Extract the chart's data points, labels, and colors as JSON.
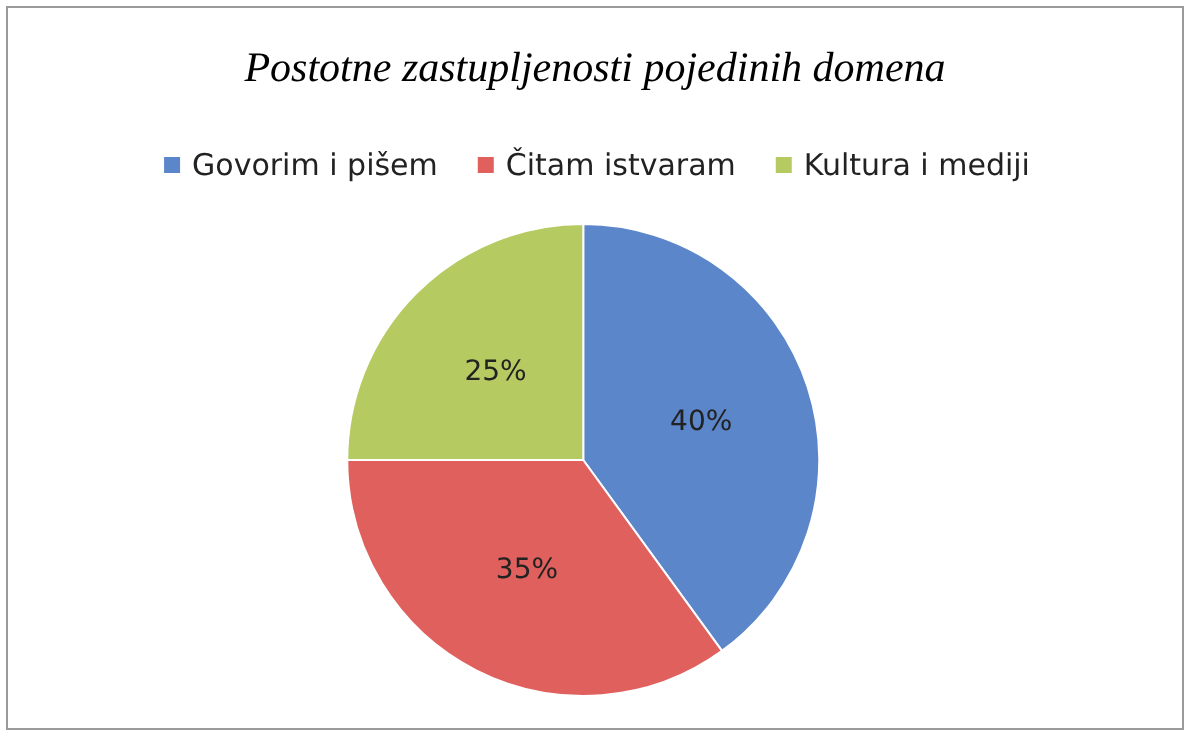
{
  "chart_data": {
    "type": "pie",
    "title": "Postotne zastupljenosti pojedinih domena",
    "categories": [
      "Govorim i pišem",
      "Čitam istvaram",
      "Kultura i mediji"
    ],
    "values": [
      40,
      35,
      25
    ],
    "colors": [
      "#5b86c9",
      "#e0605e",
      "#b5cb62"
    ],
    "value_labels": [
      "40%",
      "35%",
      "25%"
    ],
    "legend": "top"
  }
}
